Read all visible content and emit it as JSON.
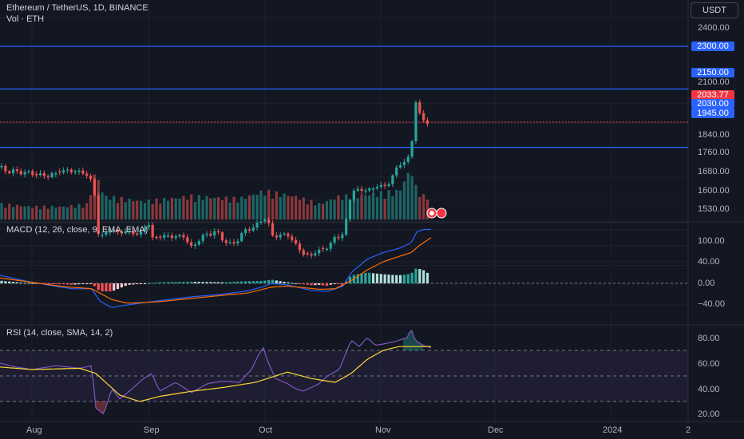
{
  "header": {
    "title": "Ethereum / TetherUS, 1D, BINANCE",
    "volume_label": "Vol · ETH",
    "currency_button": "USDT"
  },
  "colors": {
    "background": "#131722",
    "bull": "#26a69a",
    "bear": "#ef5350",
    "level_line": "#2962ff",
    "macd_line": "#2962ff",
    "signal_line": "#ff6d00",
    "rsi_line": "#7e57c2",
    "rsi_ma_line": "#fdd835"
  },
  "price_axis": {
    "ticks": [
      "2400.00",
      "2300.00",
      "2150.00",
      "2100.00",
      "2033.77",
      "2030.00",
      "1945.00",
      "1840.00",
      "1760.00",
      "1680.00",
      "1600.00",
      "1530.00"
    ],
    "tick_values": [
      2400,
      2300,
      2150,
      2100,
      2033.77,
      2030,
      1945,
      1840,
      1760,
      1680,
      1600,
      1530
    ]
  },
  "levels": [
    {
      "value": "2300.00",
      "color": "#2962ff"
    },
    {
      "value": "2150.00",
      "color": "#2962ff"
    },
    {
      "value": "1945.00",
      "color": "#2962ff"
    }
  ],
  "last_price": {
    "value": "2033.77",
    "color": "#f23645"
  },
  "extra_badge": {
    "value": "2030.00",
    "color": "#2962ff"
  },
  "macd": {
    "label": "MACD (12, 26, close, 9, EMA, EMA)",
    "axis_ticks": [
      "100.00",
      "40.00",
      "0.00",
      "−40.00"
    ],
    "axis_values": [
      100,
      40,
      0,
      -40
    ]
  },
  "rsi": {
    "label": "RSI (14, close, SMA, 14, 2)",
    "axis_ticks": [
      "80.00",
      "60.00",
      "40.00",
      "20.00"
    ],
    "axis_values": [
      80,
      60,
      40,
      20
    ],
    "bands": [
      70,
      50,
      30
    ]
  },
  "x_axis": {
    "labels": [
      "Aug",
      "Sep",
      "Oct",
      "Nov",
      "Dec",
      "2024",
      "2"
    ]
  },
  "chart_data": {
    "type": "candlestick",
    "title": "Ethereum / TetherUS, 1D, BINANCE",
    "ylim": [
      1500,
      2450
    ],
    "anchors": {
      "close": [
        [
          0,
          1875
        ],
        [
          10,
          1860
        ],
        [
          25,
          1860
        ],
        [
          30,
          1855
        ],
        [
          40,
          1855
        ],
        [
          42,
          1855
        ],
        [
          50,
          1845
        ],
        [
          70,
          1850
        ],
        [
          75,
          1865
        ],
        [
          85,
          1860
        ],
        [
          95,
          1865
        ],
        [
          100,
          1855
        ],
        [
          110,
          1850
        ],
        [
          118,
          1805
        ],
        [
          120,
          1650
        ],
        [
          130,
          1635
        ],
        [
          140,
          1660
        ],
        [
          150,
          1640
        ],
        [
          160,
          1655
        ],
        [
          170,
          1635
        ],
        [
          180,
          1655
        ],
        [
          185,
          1690
        ],
        [
          190,
          1625
        ],
        [
          200,
          1630
        ],
        [
          210,
          1635
        ],
        [
          220,
          1630
        ],
        [
          230,
          1635
        ],
        [
          240,
          1590
        ],
        [
          250,
          1625
        ],
        [
          260,
          1640
        ],
        [
          270,
          1650
        ],
        [
          280,
          1620
        ],
        [
          290,
          1600
        ],
        [
          300,
          1630
        ],
        [
          310,
          1660
        ],
        [
          320,
          1665
        ],
        [
          330,
          1700
        ],
        [
          335,
          1690
        ],
        [
          340,
          1635
        ],
        [
          350,
          1635
        ],
        [
          360,
          1640
        ],
        [
          370,
          1605
        ],
        [
          380,
          1570
        ],
        [
          390,
          1565
        ],
        [
          400,
          1585
        ],
        [
          410,
          1590
        ],
        [
          420,
          1635
        ],
        [
          425,
          1625
        ],
        [
          430,
          1640
        ],
        [
          440,
          1785
        ],
        [
          450,
          1800
        ],
        [
          460,
          1790
        ],
        [
          470,
          1810
        ],
        [
          480,
          1805
        ],
        [
          490,
          1830
        ],
        [
          500,
          1890
        ],
        [
          510,
          1895
        ],
        [
          515,
          1930
        ],
        [
          520,
          2120
        ],
        [
          525,
          2060
        ],
        [
          530,
          2040
        ],
        [
          540,
          2033.77
        ]
      ],
      "volume": [
        [
          0,
          0.3
        ],
        [
          40,
          0.25
        ],
        [
          80,
          0.25
        ],
        [
          110,
          0.3
        ],
        [
          120,
          0.95
        ],
        [
          130,
          0.45
        ],
        [
          180,
          0.35
        ],
        [
          240,
          0.45
        ],
        [
          300,
          0.4
        ],
        [
          330,
          0.55
        ],
        [
          370,
          0.45
        ],
        [
          400,
          0.3
        ],
        [
          425,
          0.45
        ],
        [
          440,
          0.45
        ],
        [
          500,
          0.55
        ],
        [
          515,
          1.0
        ],
        [
          520,
          0.65
        ],
        [
          530,
          0.45
        ],
        [
          540,
          0.5
        ]
      ],
      "macd": [
        [
          0,
          15
        ],
        [
          30,
          5
        ],
        [
          60,
          -3
        ],
        [
          90,
          -10
        ],
        [
          115,
          -10
        ],
        [
          125,
          -33
        ],
        [
          140,
          -45
        ],
        [
          160,
          -40
        ],
        [
          200,
          -32
        ],
        [
          240,
          -25
        ],
        [
          280,
          -20
        ],
        [
          310,
          -14
        ],
        [
          330,
          -6
        ],
        [
          340,
          0
        ],
        [
          360,
          -3
        ],
        [
          390,
          -13
        ],
        [
          410,
          -15
        ],
        [
          430,
          -5
        ],
        [
          440,
          20
        ],
        [
          460,
          45
        ],
        [
          480,
          57
        ],
        [
          500,
          65
        ],
        [
          515,
          75
        ],
        [
          522,
          95
        ],
        [
          530,
          100
        ],
        [
          540,
          100
        ]
      ],
      "signal": [
        [
          0,
          10
        ],
        [
          40,
          2
        ],
        [
          80,
          -6
        ],
        [
          115,
          -10
        ],
        [
          140,
          -30
        ],
        [
          160,
          -37
        ],
        [
          200,
          -34
        ],
        [
          240,
          -28
        ],
        [
          280,
          -22
        ],
        [
          310,
          -18
        ],
        [
          340,
          -7
        ],
        [
          360,
          -5
        ],
        [
          400,
          -11
        ],
        [
          420,
          -10
        ],
        [
          440,
          5
        ],
        [
          460,
          25
        ],
        [
          480,
          40
        ],
        [
          500,
          50
        ],
        [
          515,
          57
        ],
        [
          525,
          70
        ],
        [
          540,
          85
        ]
      ],
      "rsi": [
        [
          0,
          60
        ],
        [
          20,
          57
        ],
        [
          40,
          55
        ],
        [
          70,
          58
        ],
        [
          100,
          56
        ],
        [
          115,
          58
        ],
        [
          120,
          25
        ],
        [
          130,
          20
        ],
        [
          140,
          40
        ],
        [
          150,
          32
        ],
        [
          160,
          37
        ],
        [
          180,
          48
        ],
        [
          190,
          52
        ],
        [
          200,
          38
        ],
        [
          220,
          45
        ],
        [
          240,
          37
        ],
        [
          260,
          44
        ],
        [
          280,
          46
        ],
        [
          300,
          45
        ],
        [
          315,
          55
        ],
        [
          325,
          68
        ],
        [
          330,
          72
        ],
        [
          335,
          62
        ],
        [
          345,
          48
        ],
        [
          360,
          44
        ],
        [
          370,
          40
        ],
        [
          380,
          38
        ],
        [
          400,
          44
        ],
        [
          410,
          50
        ],
        [
          425,
          55
        ],
        [
          440,
          78
        ],
        [
          450,
          73
        ],
        [
          460,
          80
        ],
        [
          470,
          74
        ],
        [
          480,
          75
        ],
        [
          495,
          77
        ],
        [
          510,
          80
        ],
        [
          515,
          87
        ],
        [
          520,
          78
        ],
        [
          530,
          74
        ],
        [
          540,
          72
        ]
      ],
      "rsi_ma": [
        [
          0,
          57
        ],
        [
          40,
          55
        ],
        [
          100,
          56
        ],
        [
          120,
          52
        ],
        [
          150,
          35
        ],
        [
          175,
          30
        ],
        [
          200,
          34
        ],
        [
          240,
          38
        ],
        [
          280,
          41
        ],
        [
          320,
          45
        ],
        [
          360,
          53
        ],
        [
          390,
          48
        ],
        [
          420,
          45
        ],
        [
          440,
          52
        ],
        [
          460,
          63
        ],
        [
          480,
          70
        ],
        [
          500,
          73
        ],
        [
          520,
          73
        ],
        [
          540,
          73
        ]
      ]
    }
  }
}
